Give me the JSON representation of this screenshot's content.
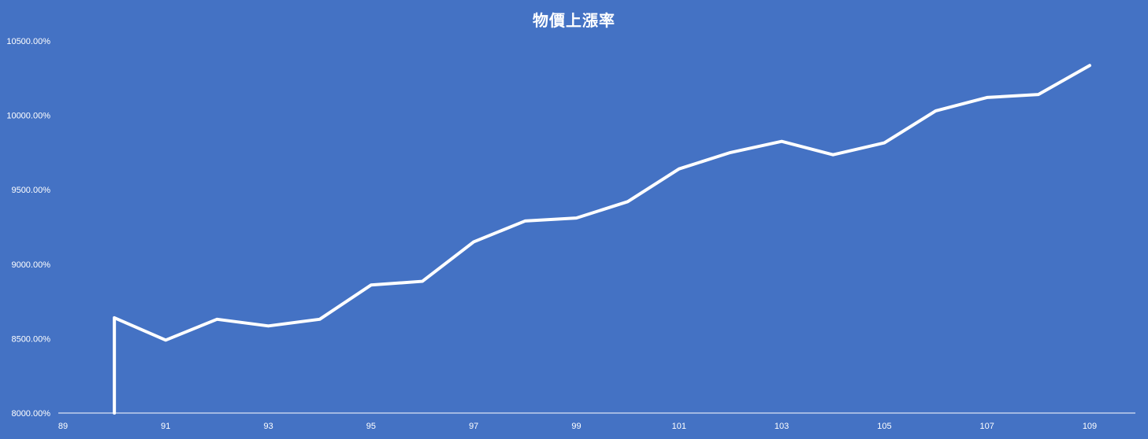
{
  "chart_data": {
    "type": "line",
    "title": "物價上漲率",
    "xlabel": "",
    "ylabel": "",
    "x_tick_labels": [
      "89",
      "91",
      "93",
      "95",
      "97",
      "99",
      "101",
      "103",
      "105",
      "107",
      "109"
    ],
    "y_tick_labels": [
      "8000.00%",
      "8500.00%",
      "9000.00%",
      "9500.00%",
      "10000.00%",
      "10500.00%"
    ],
    "ylim": [
      8000,
      10500
    ],
    "xlim": [
      89,
      109
    ],
    "grid": false,
    "drop_lines": true,
    "series": [
      {
        "color": "#FFFFFF",
        "points": [
          {
            "x": 90,
            "y": 8000
          },
          {
            "x": 90,
            "y": 8640
          },
          {
            "x": 91,
            "y": 8490
          },
          {
            "x": 92,
            "y": 8630
          },
          {
            "x": 93,
            "y": 8585
          },
          {
            "x": 94,
            "y": 8630
          },
          {
            "x": 95,
            "y": 8860
          },
          {
            "x": 96,
            "y": 8885
          },
          {
            "x": 97,
            "y": 9150
          },
          {
            "x": 98,
            "y": 9290
          },
          {
            "x": 99,
            "y": 9310
          },
          {
            "x": 100,
            "y": 9420
          },
          {
            "x": 101,
            "y": 9640
          },
          {
            "x": 102,
            "y": 9750
          },
          {
            "x": 103,
            "y": 9825
          },
          {
            "x": 104,
            "y": 9735
          },
          {
            "x": 105,
            "y": 9815
          },
          {
            "x": 106,
            "y": 10030
          },
          {
            "x": 107,
            "y": 10120
          },
          {
            "x": 108,
            "y": 10140
          },
          {
            "x": 109,
            "y": 10335
          }
        ]
      }
    ]
  },
  "colors": {
    "background": "#4472C4",
    "line": "#FFFFFF",
    "axis": "#FFFFFF"
  }
}
